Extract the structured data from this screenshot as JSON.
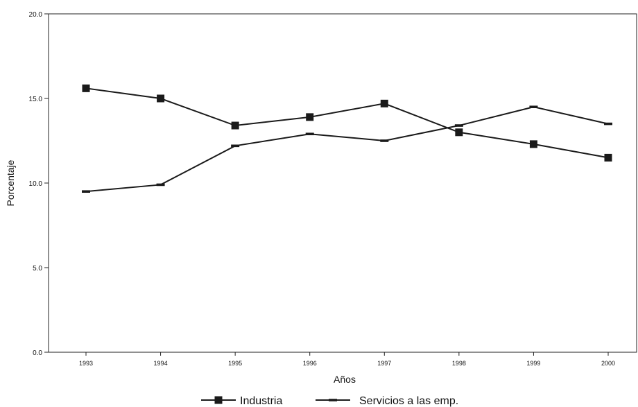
{
  "chart_data": {
    "type": "line",
    "x": [
      "1993",
      "1994",
      "1995",
      "1996",
      "1997",
      "1998",
      "1999",
      "2000"
    ],
    "series": [
      {
        "name": "Industria",
        "values": [
          15.6,
          15.0,
          13.4,
          13.9,
          14.7,
          13.0,
          12.3,
          11.5
        ],
        "marker": "square"
      },
      {
        "name": "Servicios a las emp.",
        "values": [
          9.5,
          9.9,
          12.2,
          12.9,
          12.5,
          13.4,
          14.5,
          13.5
        ],
        "marker": "dash"
      }
    ],
    "xlabel": "Años",
    "ylabel": "Porcentaje",
    "ylim": [
      0,
      20
    ],
    "yticks": [
      "0.0",
      "5.0",
      "10.0",
      "15.0",
      "20.0"
    ],
    "grid": false,
    "legend_position": "bottom"
  },
  "colors": {
    "line": "#1a1a1a",
    "axis": "#222222",
    "background": "#ffffff"
  }
}
